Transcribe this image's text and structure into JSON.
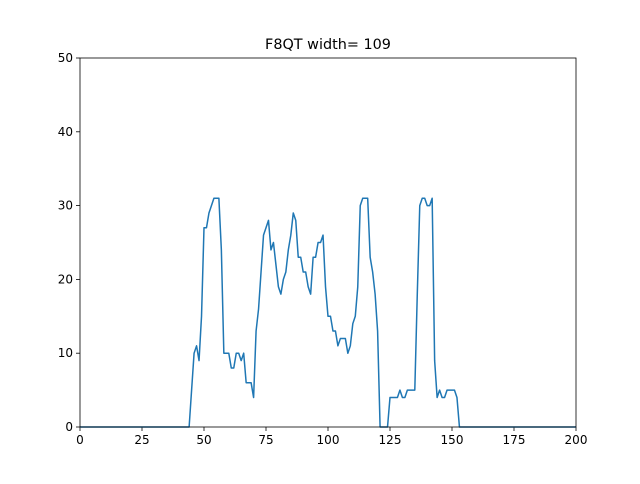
{
  "chart_data": {
    "type": "line",
    "title": "F8QT width= 109",
    "x": [
      0,
      44,
      45,
      46,
      47,
      48,
      49,
      50,
      51,
      52,
      53,
      54,
      55,
      56,
      57,
      58,
      59,
      60,
      61,
      62,
      63,
      64,
      65,
      66,
      67,
      68,
      69,
      70,
      71,
      72,
      73,
      74,
      75,
      76,
      77,
      78,
      79,
      80,
      81,
      82,
      83,
      84,
      85,
      86,
      87,
      88,
      89,
      90,
      91,
      92,
      93,
      94,
      95,
      96,
      97,
      98,
      99,
      100,
      101,
      102,
      103,
      104,
      105,
      106,
      107,
      108,
      109,
      110,
      111,
      112,
      113,
      114,
      115,
      116,
      117,
      118,
      119,
      120,
      121,
      122,
      123,
      124,
      125,
      126,
      127,
      128,
      129,
      130,
      131,
      132,
      133,
      134,
      135,
      136,
      137,
      138,
      139,
      140,
      141,
      142,
      143,
      144,
      145,
      146,
      147,
      148,
      149,
      150,
      151,
      152,
      153,
      200
    ],
    "values": [
      0,
      0,
      5,
      10,
      11,
      9,
      15,
      27,
      27,
      29,
      30,
      31,
      31,
      31,
      24,
      10,
      10,
      10,
      8,
      8,
      10,
      10,
      9,
      10,
      6,
      6,
      6,
      4,
      13,
      16,
      21,
      26,
      27,
      28,
      24,
      25,
      22,
      19,
      18,
      20,
      21,
      24,
      26,
      29,
      28,
      23,
      23,
      21,
      21,
      19,
      18,
      23,
      23,
      25,
      25,
      26,
      19,
      15,
      15,
      13,
      13,
      11,
      12,
      12,
      12,
      10,
      11,
      14,
      15,
      19,
      30,
      31,
      31,
      31,
      23,
      21,
      18,
      13,
      0,
      0,
      0,
      0,
      4,
      4,
      4,
      4,
      5,
      4,
      4,
      5,
      5,
      5,
      5,
      18,
      30,
      31,
      31,
      30,
      30,
      31,
      9,
      4,
      5,
      4,
      4,
      5,
      5,
      5,
      5,
      4,
      0,
      0
    ],
    "color": "#1f77b4",
    "xlim": [
      0,
      200
    ],
    "xticks": [
      0,
      25,
      50,
      75,
      100,
      125,
      150,
      175,
      200
    ],
    "ylim": [
      0,
      50
    ],
    "yticks": [
      0,
      10,
      20,
      30,
      40,
      50
    ]
  }
}
